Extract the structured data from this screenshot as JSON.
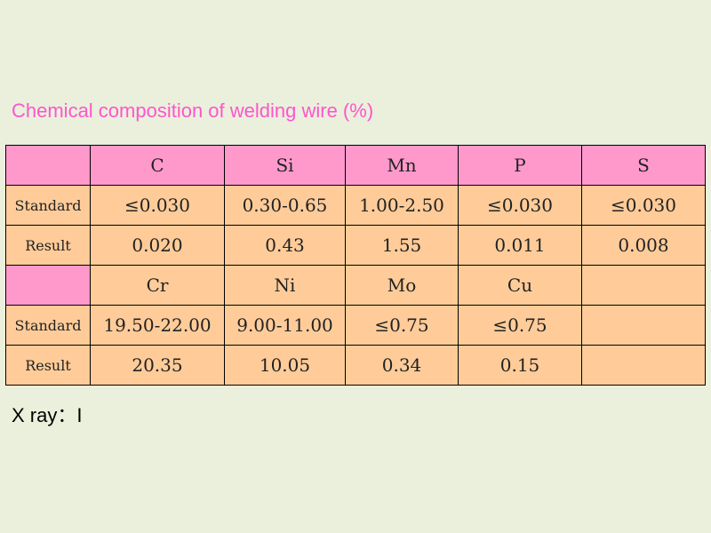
{
  "title": "Chemical composition of welding wire (%)",
  "table": {
    "group1": {
      "headers": [
        "C",
        "Si",
        "Mn",
        "P",
        "S"
      ],
      "standard_label": "Standard",
      "standard": [
        "≤0.030",
        "0.30-0.65",
        "1.00-2.50",
        "≤0.030",
        "≤0.030"
      ],
      "result_label": "Result",
      "result": [
        "0.020",
        "0.43",
        "1.55",
        "0.011",
        "0.008"
      ]
    },
    "group2": {
      "headers": [
        "Cr",
        "Ni",
        "Mo",
        "Cu",
        ""
      ],
      "standard_label": "Standard",
      "standard": [
        "19.50-22.00",
        "9.00-11.00",
        "≤0.75",
        "≤0.75",
        ""
      ],
      "result_label": "Result",
      "result": [
        "20.35",
        "10.05",
        "0.34",
        "0.15",
        ""
      ]
    }
  },
  "footer": "X ray：I",
  "colors": {
    "background": "#eaf0dc",
    "title": "#ff55cc",
    "header_fill": "#ff99cc",
    "data_fill": "#ffcc99"
  }
}
